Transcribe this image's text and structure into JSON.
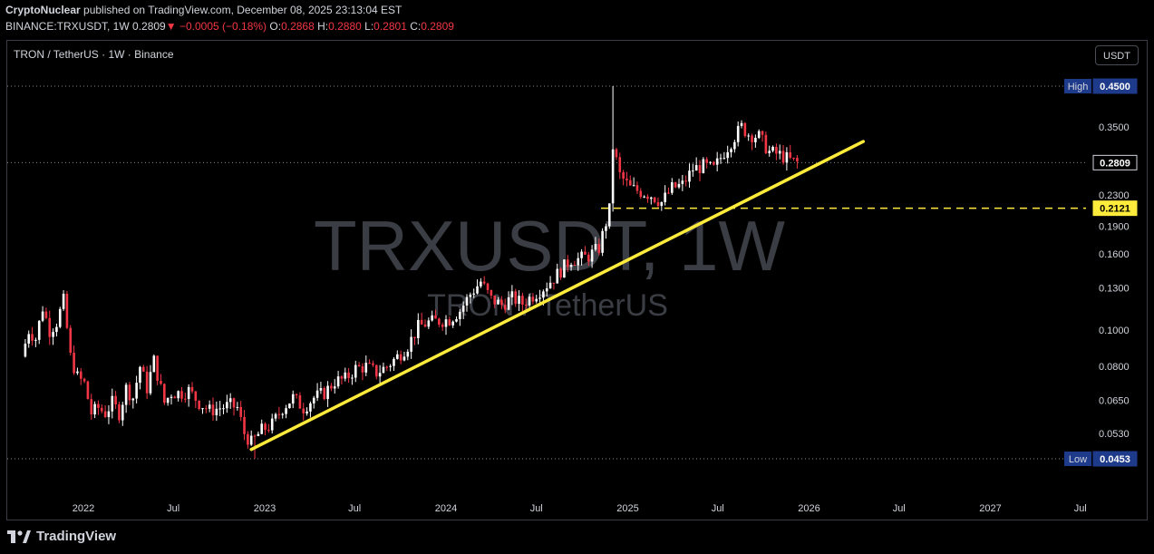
{
  "header": {
    "author": "CryptoNuclear",
    "published_text": "published on TradingView.com, December 08, 2025 23:13:04 EST",
    "symbol": "BINANCE:TRXUSDT, 1W",
    "last": "0.2809",
    "change_arrow": "▼",
    "change": "−0.0005 (−0.18%)",
    "o_label": "O:",
    "o": "0.2868",
    "h_label": "H:",
    "h": "0.2880",
    "l_label": "L:",
    "l": "0.2801",
    "c_label": "C:",
    "c": "0.2809"
  },
  "pair_title": "TRON / TetherUS · 1W · Binance",
  "currency_button": "USDT",
  "watermark": {
    "main": "TRXUSDT, 1W",
    "sub": "TRON / TetherUS"
  },
  "footer": {
    "brand": "TradingView",
    "logo_icon": "tradingview-logo-icon"
  },
  "colors": {
    "up": "#ffffff",
    "down": "#f23645",
    "trendline": "#ffeb3b",
    "level_line": "#ffeb3b",
    "high_low_badge": "#1e3a8a"
  },
  "chart_data": {
    "type": "candlestick",
    "timeframe": "1W",
    "y_scale": "log",
    "y_ticks": [
      "0.3500",
      "0.2300",
      "0.1900",
      "0.1600",
      "0.1300",
      "0.1000",
      "0.0800",
      "0.0650",
      "0.0530"
    ],
    "x_ticks": [
      "2022",
      "Jul",
      "2023",
      "Jul",
      "2024",
      "Jul",
      "2025",
      "Jul",
      "2026",
      "Jul",
      "2027",
      "Jul"
    ],
    "badges": {
      "high": {
        "label": "High",
        "value": "0.4500"
      },
      "low": {
        "label": "Low",
        "value": "0.0453"
      },
      "last": {
        "value": "0.2809"
      },
      "level": {
        "value": "0.2121"
      }
    },
    "horizontal_level": 0.2121,
    "high": 0.45,
    "low": 0.0453,
    "last": 0.2809,
    "trendline": {
      "start": {
        "date": "2022-12-05",
        "price": 0.048
      },
      "end": {
        "date": "2026-04-20",
        "price": 0.32
      }
    },
    "anchors": [
      [
        "2021-08-30",
        0.085
      ],
      [
        "2021-09-13",
        0.1
      ],
      [
        "2021-09-27",
        0.095
      ],
      [
        "2021-10-11",
        0.115
      ],
      [
        "2021-10-25",
        0.1
      ],
      [
        "2021-11-08",
        0.105
      ],
      [
        "2021-11-22",
        0.12
      ],
      [
        "2021-12-06",
        0.085
      ],
      [
        "2021-12-20",
        0.075
      ],
      [
        "2022-01-03",
        0.072
      ],
      [
        "2022-01-17",
        0.06
      ],
      [
        "2022-01-31",
        0.062
      ],
      [
        "2022-02-14",
        0.06
      ],
      [
        "2022-02-28",
        0.064
      ],
      [
        "2022-03-14",
        0.06
      ],
      [
        "2022-03-28",
        0.07
      ],
      [
        "2022-04-11",
        0.066
      ],
      [
        "2022-04-25",
        0.08
      ],
      [
        "2022-05-09",
        0.07
      ],
      [
        "2022-05-23",
        0.083
      ],
      [
        "2022-06-13",
        0.064
      ],
      [
        "2022-06-27",
        0.068
      ],
      [
        "2022-07-18",
        0.068
      ],
      [
        "2022-08-01",
        0.069
      ],
      [
        "2022-08-22",
        0.064
      ],
      [
        "2022-09-12",
        0.061
      ],
      [
        "2022-10-03",
        0.062
      ],
      [
        "2022-10-24",
        0.063
      ],
      [
        "2022-11-07",
        0.062
      ],
      [
        "2022-11-21",
        0.053
      ],
      [
        "2022-12-05",
        0.05
      ],
      [
        "2022-12-26",
        0.054
      ],
      [
        "2023-01-16",
        0.056
      ],
      [
        "2023-02-06",
        0.062
      ],
      [
        "2023-02-27",
        0.066
      ],
      [
        "2023-03-20",
        0.062
      ],
      [
        "2023-04-10",
        0.066
      ],
      [
        "2023-05-01",
        0.068
      ],
      [
        "2023-05-22",
        0.073
      ],
      [
        "2023-06-12",
        0.074
      ],
      [
        "2023-07-03",
        0.079
      ],
      [
        "2023-07-24",
        0.08
      ],
      [
        "2023-08-14",
        0.077
      ],
      [
        "2023-09-04",
        0.08
      ],
      [
        "2023-09-25",
        0.085
      ],
      [
        "2023-10-16",
        0.091
      ],
      [
        "2023-11-06",
        0.102
      ],
      [
        "2023-11-27",
        0.105
      ],
      [
        "2023-12-18",
        0.106
      ],
      [
        "2024-01-08",
        0.107
      ],
      [
        "2024-01-29",
        0.113
      ],
      [
        "2024-02-19",
        0.125
      ],
      [
        "2024-03-11",
        0.135
      ],
      [
        "2024-04-01",
        0.121
      ],
      [
        "2024-04-22",
        0.117
      ],
      [
        "2024-05-13",
        0.122
      ],
      [
        "2024-06-03",
        0.118
      ],
      [
        "2024-06-24",
        0.124
      ],
      [
        "2024-07-15",
        0.13
      ],
      [
        "2024-08-05",
        0.138
      ],
      [
        "2024-08-26",
        0.148
      ],
      [
        "2024-09-09",
        0.155
      ],
      [
        "2024-09-23",
        0.155
      ],
      [
        "2024-10-14",
        0.158
      ],
      [
        "2024-11-04",
        0.166
      ],
      [
        "2024-11-25",
        0.21
      ],
      [
        "2024-12-02",
        0.31
      ],
      [
        "2024-12-16",
        0.26
      ],
      [
        "2025-01-06",
        0.24
      ],
      [
        "2025-01-27",
        0.235
      ],
      [
        "2025-02-17",
        0.23
      ],
      [
        "2025-03-10",
        0.22
      ],
      [
        "2025-03-31",
        0.24
      ],
      [
        "2025-04-21",
        0.245
      ],
      [
        "2025-05-12",
        0.27
      ],
      [
        "2025-06-02",
        0.275
      ],
      [
        "2025-06-23",
        0.27
      ],
      [
        "2025-07-14",
        0.3
      ],
      [
        "2025-08-04",
        0.33
      ],
      [
        "2025-08-18",
        0.35
      ],
      [
        "2025-09-01",
        0.335
      ],
      [
        "2025-09-22",
        0.33
      ],
      [
        "2025-10-13",
        0.3
      ],
      [
        "2025-11-03",
        0.295
      ],
      [
        "2025-11-24",
        0.285
      ],
      [
        "2025-12-08",
        0.2809
      ]
    ]
  }
}
